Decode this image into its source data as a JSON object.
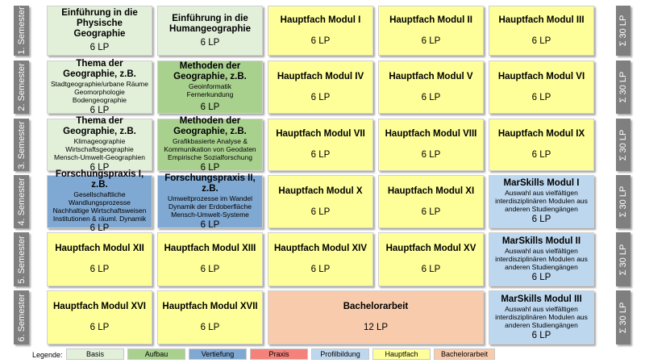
{
  "semesters": [
    "1. Semester",
    "2. Semester",
    "3. Semester",
    "4. Semester",
    "5. Semester",
    "6. Semester"
  ],
  "sums": [
    "Σ 30 LP",
    "Σ 30 LP",
    "Σ 30 LP",
    "Σ 30 LP",
    "Σ 30 LP",
    "Σ 30 LP"
  ],
  "rows": [
    [
      {
        "title": "Einführung in die Physische Geographie",
        "sub": "",
        "lp": "6 LP"
      },
      {
        "title": "Einführung in die Humangeographie",
        "sub": "",
        "lp": "6 LP"
      },
      {
        "title": "Hauptfach Modul I",
        "sub": "",
        "lp": "6 LP"
      },
      {
        "title": "Hauptfach Modul II",
        "sub": "",
        "lp": "6 LP"
      },
      {
        "title": "Hauptfach Modul III",
        "sub": "",
        "lp": "6 LP"
      }
    ],
    [
      {
        "title": "Thema der Geographie, z.B.",
        "sub": "Stadtgeographie/urbane Räume\nGeomorphologie\nBodengeographie",
        "lp": "6 LP"
      },
      {
        "title": "Methoden der Geographie, z.B.",
        "sub": "Geoinformatik\nFernerkundung",
        "lp": "6 LP"
      },
      {
        "title": "Hauptfach Modul IV",
        "sub": "",
        "lp": "6 LP"
      },
      {
        "title": "Hauptfach Modul V",
        "sub": "",
        "lp": "6 LP"
      },
      {
        "title": "Hauptfach Modul VI",
        "sub": "",
        "lp": "6 LP"
      }
    ],
    [
      {
        "title": "Thema der Geographie, z.B.",
        "sub": "Klimageographie\nWirtschaftsgeographie\nMensch-Umwelt-Geographien",
        "lp": "6 LP"
      },
      {
        "title": "Methoden der Geographie, z.B.",
        "sub": "Grafikbasierte Analyse &\nKommunikation von Geodaten\nEmpirische Sozialforschung",
        "lp": "6 LP"
      },
      {
        "title": "Hauptfach Modul VII",
        "sub": "",
        "lp": "6 LP"
      },
      {
        "title": "Hauptfach Modul VIII",
        "sub": "",
        "lp": "6 LP"
      },
      {
        "title": "Hauptfach Modul IX",
        "sub": "",
        "lp": "6 LP"
      }
    ],
    [
      {
        "title": "Forschungspraxis I, z.B.",
        "sub": "Gesellschaftliche\nWandlungsprozesse\nNachhaltige Wirtschaftsweisen\nInstitutionen & räuml. Dynamik",
        "lp": "6 LP"
      },
      {
        "title": "Forschungspraxis II, z.B.",
        "sub": "Umweltprozesse im Wandel\nDynamik der Erdoberfläche\nMensch-Umwelt-Systeme",
        "lp": "6 LP"
      },
      {
        "title": "Hauptfach Modul X",
        "sub": "",
        "lp": "6 LP"
      },
      {
        "title": "Hauptfach Modul XI",
        "sub": "",
        "lp": "6 LP"
      },
      {
        "title": "MarSkills Modul I",
        "sub": "Auswahl aus vielfältigen\ninterdisziplinären Modulen aus\nanderen Studiengängen",
        "lp": "6 LP"
      }
    ],
    [
      {
        "title": "Hauptfach Modul XII",
        "sub": "",
        "lp": "6 LP"
      },
      {
        "title": "Hauptfach Modul XIII",
        "sub": "",
        "lp": "6 LP"
      },
      {
        "title": "Hauptfach Modul XIV",
        "sub": "",
        "lp": "6 LP"
      },
      {
        "title": "Hauptfach Modul XV",
        "sub": "",
        "lp": "6 LP"
      },
      {
        "title": "MarSkills Modul II",
        "sub": "Auswahl aus vielfältigen\ninterdisziplinären Modulen aus\nanderen Studiengängen",
        "lp": "6 LP"
      }
    ],
    [
      {
        "title": "Hauptfach Modul XVI",
        "sub": "",
        "lp": "6 LP"
      },
      {
        "title": "Hauptfach Modul XVII",
        "sub": "",
        "lp": "6 LP"
      },
      {
        "title": "Bachelorarbeit",
        "sub": "",
        "lp": "12 LP"
      },
      {
        "title": "MarSkills Modul III",
        "sub": "Auswahl aus vielfältigen\ninterdisziplinären Modulen aus\nanderen Studiengängen",
        "lp": "6 LP"
      }
    ]
  ],
  "legend": {
    "label": "Legende:",
    "items": [
      {
        "label": "Basis",
        "color": "#e2f0d9"
      },
      {
        "label": "Aufbau",
        "color": "#a9d18e"
      },
      {
        "label": "Vertiefung",
        "color": "#7fa8d2"
      },
      {
        "label": "Praxis",
        "color": "#f4817a"
      },
      {
        "label": "Profilbildung",
        "color": "#bdd7ee"
      },
      {
        "label": "Hauptfach",
        "color": "#ffff99"
      },
      {
        "label": "Bachelorarbeit",
        "color": "#f8cbad"
      }
    ]
  }
}
